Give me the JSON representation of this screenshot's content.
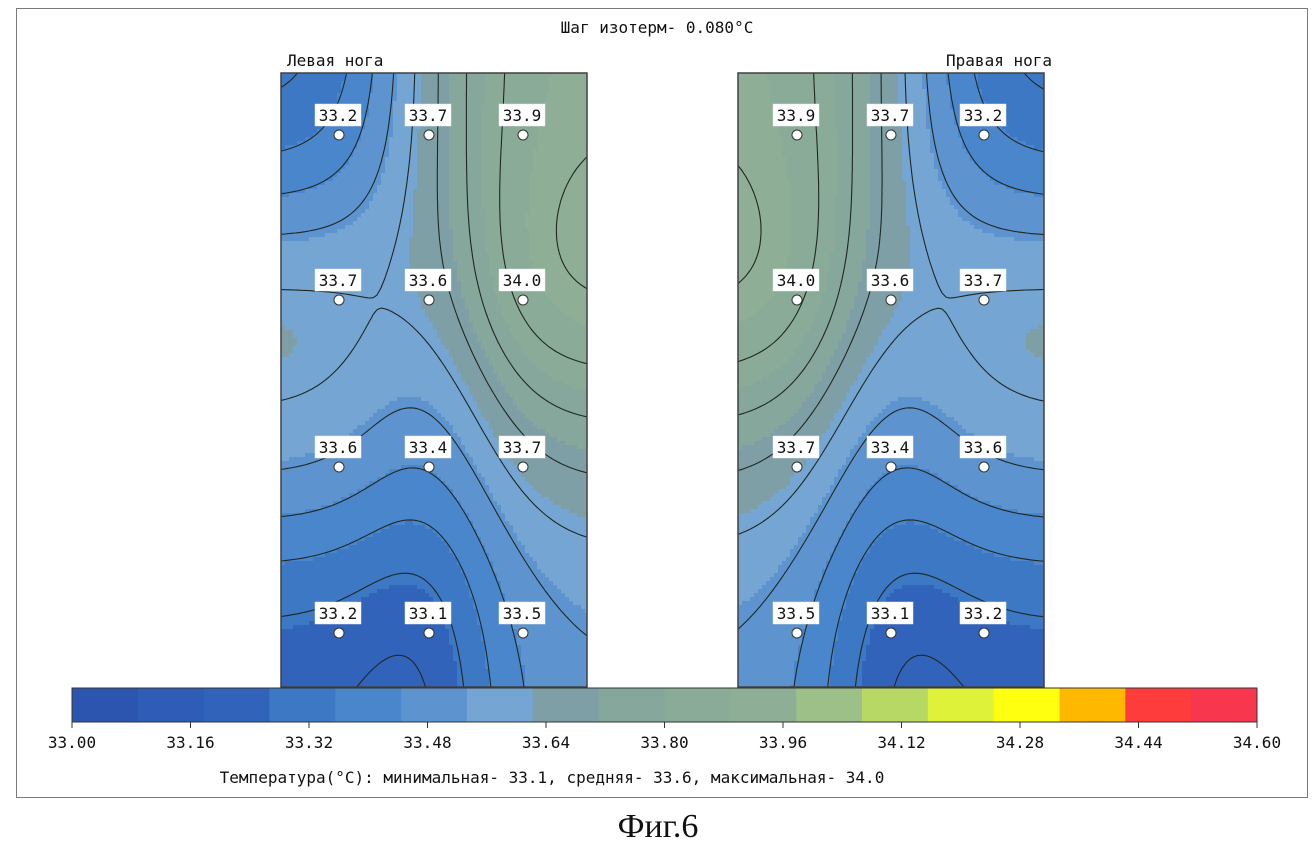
{
  "chart_data": {
    "type": "heatmap",
    "title": "Шаг изотерм- 0.080°C",
    "colors": {
      "contour": "#202820",
      "frame": "#404040",
      "text": "#111111"
    },
    "panels": [
      {
        "title": "Левая нога",
        "rows": [
          [
            33.2,
            33.7,
            33.9
          ],
          [
            33.7,
            33.6,
            34.0
          ],
          [
            33.6,
            33.4,
            33.7
          ],
          [
            33.2,
            33.1,
            33.5
          ]
        ]
      },
      {
        "title": "Правая нога",
        "rows": [
          [
            33.9,
            33.7,
            33.2
          ],
          [
            34.0,
            33.6,
            33.7
          ],
          [
            33.7,
            33.4,
            33.6
          ],
          [
            33.5,
            33.1,
            33.2
          ]
        ]
      }
    ],
    "colorbar": {
      "ticks": [
        "33.00",
        "33.16",
        "33.32",
        "33.48",
        "33.64",
        "33.80",
        "33.96",
        "34.12",
        "34.28",
        "34.44",
        "34.60"
      ],
      "range": [
        33.0,
        34.6
      ],
      "colors": [
        "#2c55b0",
        "#2f5cb6",
        "#3263ba",
        "#3c78c4",
        "#4a86cc",
        "#5d94cf",
        "#75a5d3",
        "#7e9fa6",
        "#85a79c",
        "#8aab98",
        "#8eae96",
        "#9cc088",
        "#b7d864",
        "#dff23a",
        "#ffff10",
        "#ffb800",
        "#ff3c3c",
        "#f8364e"
      ]
    },
    "summary": "Температура(°С): минимальная-  33.1,  средняя-  33.6,  максимальная-  34.0"
  },
  "caption": "Фиг.6"
}
